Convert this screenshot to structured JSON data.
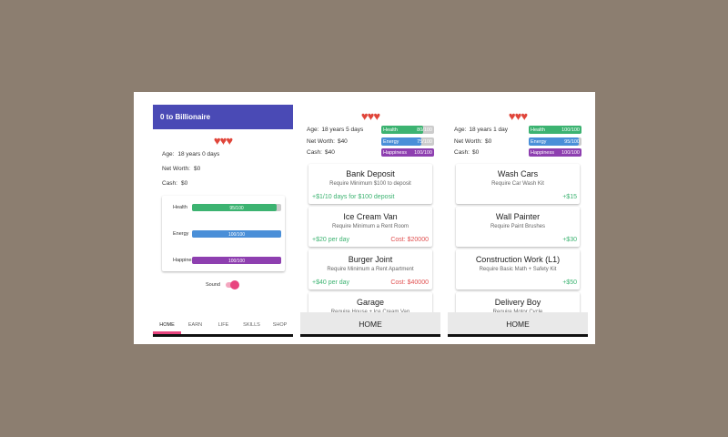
{
  "screens": [
    {
      "header": "0 to Billionaire",
      "stats": [
        {
          "label": "Age:",
          "value": "18 years 0 days"
        },
        {
          "label": "Net Worth:",
          "value": "$0"
        },
        {
          "label": "Cash:",
          "value": "$0"
        }
      ],
      "meters": [
        {
          "name": "Health",
          "value": 95,
          "max": 100,
          "value_label": "95/100",
          "color": "#3cb371"
        },
        {
          "name": "Energy",
          "value": 100,
          "max": 100,
          "value_label": "100/100",
          "color": "#4a8fd8"
        },
        {
          "name": "Happiness",
          "value": 100,
          "max": 100,
          "value_label": "100/100",
          "color": "#8e3fb0"
        }
      ],
      "toggle": "Sound",
      "tabs": [
        "HOME",
        "EARN",
        "LIFE",
        "SKILLS",
        "SHOP"
      ]
    },
    {
      "stats": [
        {
          "label": "Age:",
          "value": "18 years 5 days"
        },
        {
          "label": "Net Worth:",
          "value": "$40"
        },
        {
          "label": "Cash:",
          "value": "$40"
        }
      ],
      "meters": [
        {
          "name": "Health",
          "value": 80,
          "max": 100,
          "value_label": "80/100",
          "color": "#3cb371"
        },
        {
          "name": "Energy",
          "value": 75,
          "max": 100,
          "value_label": "75/100",
          "color": "#4a8fd8"
        },
        {
          "name": "Happiness",
          "value": 100,
          "max": 100,
          "value_label": "100/100",
          "color": "#8e3fb0"
        }
      ],
      "income_align": "left",
      "cards": [
        {
          "title": "Bank Deposit",
          "requirement": "Require Minimum $100 to deposit",
          "income": "+$1/10 days for $100 deposit"
        },
        {
          "title": "Ice Cream Van",
          "requirement": "Require Minimum a Rent Room",
          "income": "+$20 per day",
          "cost": "Cost: $20000"
        },
        {
          "title": "Burger Joint",
          "requirement": "Require Minimum a Rent Apartment",
          "income": "+$40 per day",
          "cost": "Cost: $40000"
        },
        {
          "title": "Garage",
          "requirement": "Require House + Ice Cream Van"
        }
      ],
      "footer": "HOME"
    },
    {
      "stats": [
        {
          "label": "Age:",
          "value": "18 years 1 day"
        },
        {
          "label": "Net Worth:",
          "value": "$0"
        },
        {
          "label": "Cash:",
          "value": "$0"
        }
      ],
      "meters": [
        {
          "name": "Health",
          "value": 100,
          "max": 100,
          "value_label": "100/100",
          "color": "#3cb371"
        },
        {
          "name": "Energy",
          "value": 95,
          "max": 100,
          "value_label": "95/100",
          "color": "#4a8fd8"
        },
        {
          "name": "Happiness",
          "value": 100,
          "max": 100,
          "value_label": "100/100",
          "color": "#8e3fb0"
        }
      ],
      "income_align": "right",
      "cards": [
        {
          "title": "Wash Cars",
          "requirement": "Require Car Wash Kit",
          "income": "+$15"
        },
        {
          "title": "Wall Painter",
          "requirement": "Require Paint Brushes",
          "income": "+$30"
        },
        {
          "title": "Construction Work (L1)",
          "requirement": "Require Basic Math + Safety Kit",
          "income": "+$50"
        },
        {
          "title": "Delivery Boy",
          "requirement": "Require Motor Cycle"
        }
      ],
      "footer": "HOME"
    }
  ]
}
